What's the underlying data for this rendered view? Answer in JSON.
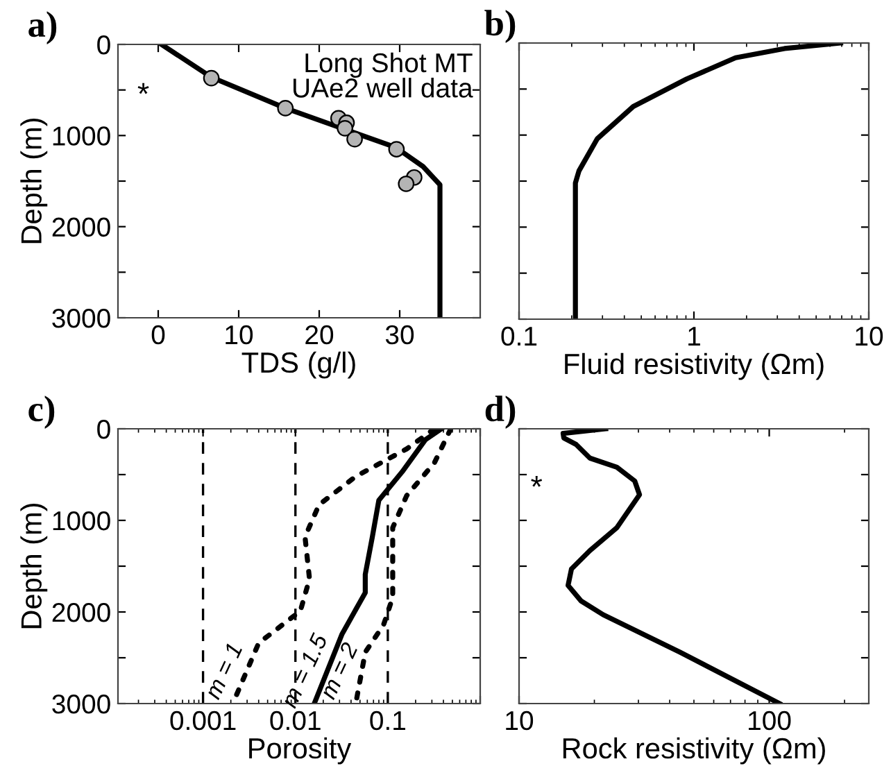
{
  "chart_data": [
    {
      "type": "line",
      "title": "a)",
      "xlabel": "TDS (g/l)",
      "ylabel": "Depth (m)",
      "xlim": [
        -5,
        40
      ],
      "xticks": [
        0,
        10,
        20,
        30
      ],
      "ylim": [
        3000,
        0
      ],
      "yticks": [
        0,
        {
          "value": 500,
          "label": null
        },
        1000,
        {
          "value": 1500,
          "label": null
        },
        2000,
        {
          "value": 2500,
          "label": null
        },
        3000
      ],
      "grid": false,
      "legend": false,
      "series": [
        {
          "type": "line",
          "color": "#000000",
          "x": [
            0.4,
            6.6,
            15.8,
            29.5,
            32.9,
            35,
            35
          ],
          "values": [
            0,
            360,
            700,
            1130,
            1340,
            1540,
            3000
          ]
        },
        {
          "type": "scatter",
          "color": "#b4b4b4",
          "marker": "circle",
          "x": [
            6.6,
            15.8,
            22.4,
            23.4,
            23.2,
            24.4,
            29.6,
            31.8,
            30.8
          ],
          "values": [
            370,
            700,
            810,
            860,
            920,
            1040,
            1150,
            1460,
            1530
          ]
        }
      ],
      "annotations": [
        "Long Shot MT\nUAe2 well data",
        "*"
      ]
    },
    {
      "type": "line",
      "title": "b)",
      "xlabel": "Fluid resistivity (Ωm)",
      "log": "x",
      "xlim": [
        0.1,
        10
      ],
      "xticks": [
        0.1,
        1,
        10
      ],
      "ylim": [
        3000,
        0
      ],
      "yticks": [
        {
          "value": 0,
          "label": null
        },
        {
          "value": 500,
          "label": null
        },
        {
          "value": 1000,
          "label": null
        },
        {
          "value": 1500,
          "label": null
        },
        {
          "value": 2000,
          "label": null
        },
        {
          "value": 2500,
          "label": null
        },
        {
          "value": 3000,
          "label": null
        }
      ],
      "tick_labels": "x",
      "grid": false,
      "legend": false,
      "series": [
        {
          "type": "line",
          "color": "#000000",
          "x": [
            6.9,
            3.3,
            1.73,
            0.91,
            0.45,
            0.28,
            0.22,
            0.21,
            0.21
          ],
          "values": [
            0,
            60,
            160,
            390,
            690,
            1040,
            1390,
            1520,
            3000
          ]
        }
      ]
    },
    {
      "type": "line",
      "title": "c)",
      "xlabel": "Porosity",
      "ylabel": "Depth (m)",
      "log": "x",
      "xlim": [
        0.00012,
        1
      ],
      "xticks": [
        0.001,
        0.01,
        0.1,
        {
          "value": 1,
          "label": null
        }
      ],
      "ylim": [
        3000,
        0
      ],
      "yticks": [
        0,
        {
          "value": 500,
          "label": null
        },
        1000,
        {
          "value": 1500,
          "label": null
        },
        2000,
        {
          "value": 2500,
          "label": null
        },
        3000
      ],
      "grid": false,
      "legend": false,
      "ref_lines": [
        {
          "axis": "x",
          "value": 0.001,
          "color": "#000000",
          "line_style": "dashed"
        },
        {
          "axis": "x",
          "value": 0.01,
          "color": "#000000",
          "line_style": "dashed"
        },
        {
          "axis": "x",
          "value": 0.1,
          "color": "#000000",
          "line_style": "dashed"
        }
      ],
      "series": [
        {
          "type": "line",
          "name": "m = 1",
          "color": "#000000",
          "line_style": "dotted",
          "x": [
            0.32,
            0.16,
            0.045,
            0.018,
            0.0127,
            0.0142,
            0.0113,
            0.004,
            0.0021
          ],
          "values": [
            0,
            220,
            520,
            830,
            1180,
            1640,
            1990,
            2340,
            3000
          ]
        },
        {
          "type": "line",
          "name": "m = 1.5",
          "color": "#000000",
          "line_style": "solid",
          "x": [
            0.38,
            0.255,
            0.143,
            0.08,
            0.068,
            0.057,
            0.057,
            0.032,
            0.016
          ],
          "values": [
            0,
            120,
            470,
            780,
            1180,
            1590,
            1790,
            2240,
            3000
          ]
        },
        {
          "type": "line",
          "name": "m = 2",
          "color": "#000000",
          "line_style": "dotted",
          "x": [
            0.48,
            0.32,
            0.16,
            0.113,
            0.113,
            0.09,
            0.057,
            0.045
          ],
          "values": [
            0,
            370,
            730,
            1080,
            1840,
            2140,
            2440,
            3000
          ]
        }
      ]
    },
    {
      "type": "line",
      "title": "d)",
      "xlabel": "Rock resistivity (Ωm)",
      "log": "x",
      "xlim": [
        10,
        250
      ],
      "xticks": [
        10,
        100
      ],
      "ylim": [
        3000,
        0
      ],
      "yticks": [
        {
          "value": 0,
          "label": null
        },
        {
          "value": 500,
          "label": null
        },
        {
          "value": 1000,
          "label": null
        },
        {
          "value": 1500,
          "label": null
        },
        {
          "value": 2000,
          "label": null
        },
        {
          "value": 2500,
          "label": null
        },
        {
          "value": 3000,
          "label": null
        }
      ],
      "tick_labels": "x",
      "grid": false,
      "legend": false,
      "series": [
        {
          "type": "line",
          "color": "#000000",
          "x": [
            22.2,
            15.0,
            15.1,
            16.9,
            19.2,
            24.6,
            29.0,
            30.3,
            24.6,
            19.2,
            16.2,
            15.7,
            17.7,
            21.7,
            44,
            110
          ],
          "values": [
            0,
            50,
            100,
            170,
            320,
            420,
            570,
            720,
            1080,
            1330,
            1530,
            1710,
            1880,
            2030,
            2440,
            3000
          ]
        }
      ],
      "annotations": [
        "*"
      ]
    }
  ]
}
